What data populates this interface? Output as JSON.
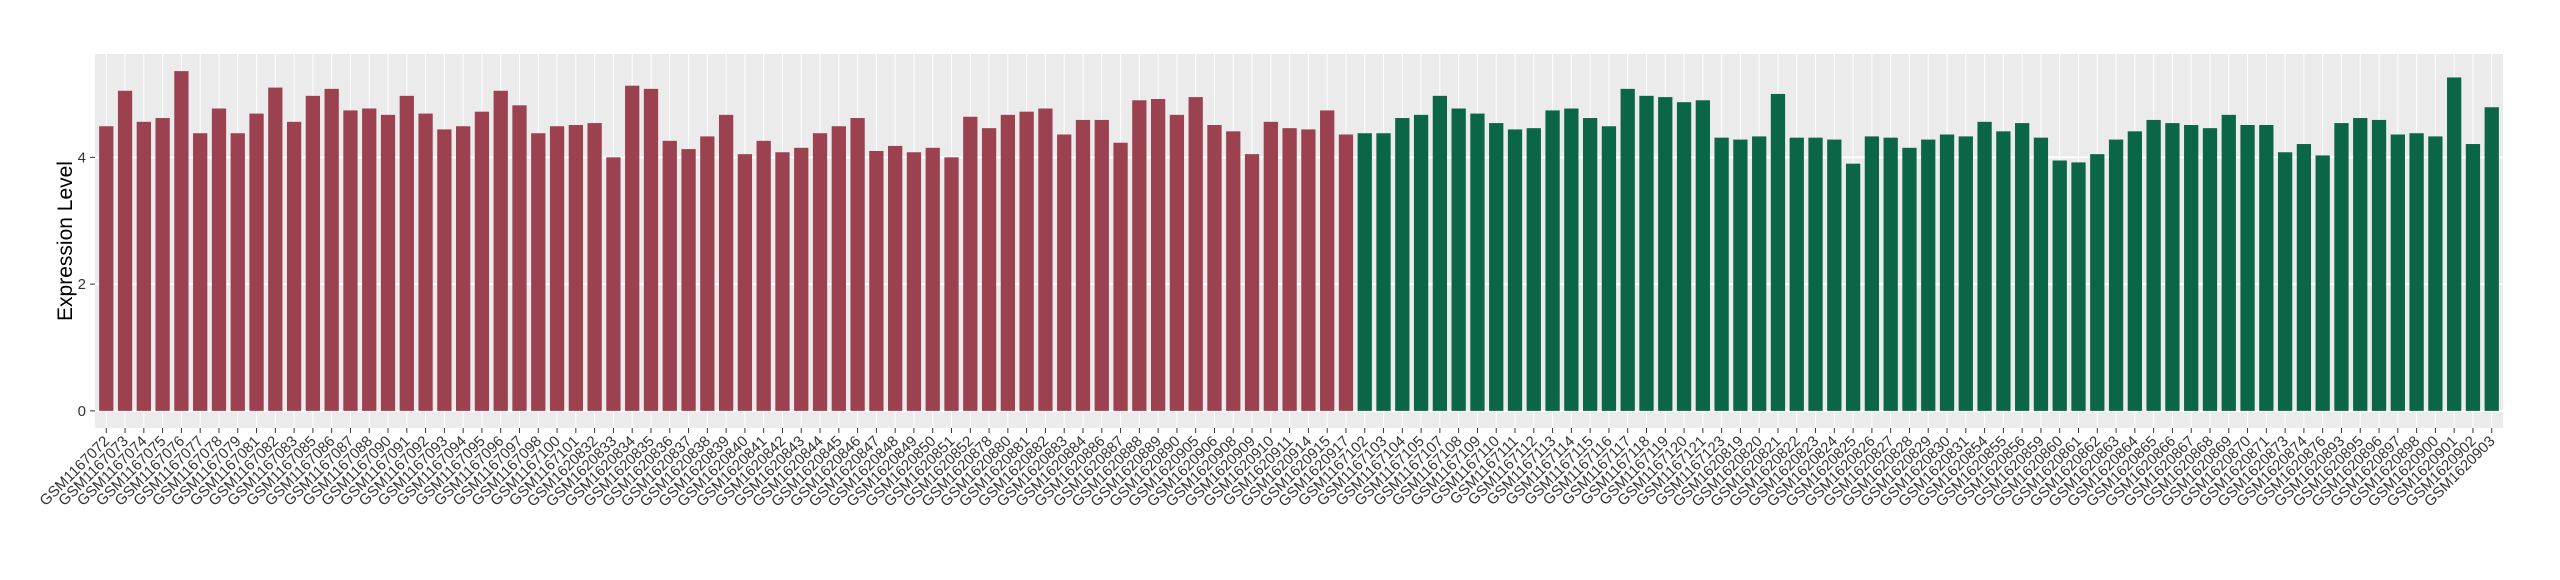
{
  "chart_data": {
    "type": "bar",
    "ylabel": "Expression Level",
    "ylim": [
      -0.27,
      5.63
    ],
    "yticks": [
      0,
      2,
      4
    ],
    "grid": true,
    "series": [
      {
        "color": "#9b4150",
        "categories": [
          "GSM1167072",
          "GSM1167073",
          "GSM1167074",
          "GSM1167075",
          "GSM1167076",
          "GSM1167077",
          "GSM1167078",
          "GSM1167079",
          "GSM1167081",
          "GSM1167082",
          "GSM1167083",
          "GSM1167085",
          "GSM1167086",
          "GSM1167087",
          "GSM1167088",
          "GSM1167090",
          "GSM1167091",
          "GSM1167092",
          "GSM1167093",
          "GSM1167094",
          "GSM1167095",
          "GSM1167096",
          "GSM1167097",
          "GSM1167098",
          "GSM1167100",
          "GSM1167101",
          "GSM1620832",
          "GSM1620833",
          "GSM1620834",
          "GSM1620835",
          "GSM1620836",
          "GSM1620837",
          "GSM1620838",
          "GSM1620839",
          "GSM1620840",
          "GSM1620841",
          "GSM1620842",
          "GSM1620843",
          "GSM1620844",
          "GSM1620845",
          "GSM1620846",
          "GSM1620847",
          "GSM1620848",
          "GSM1620849",
          "GSM1620850",
          "GSM1620851",
          "GSM1620852",
          "GSM1620878",
          "GSM1620880",
          "GSM1620881",
          "GSM1620882",
          "GSM1620883",
          "GSM1620884",
          "GSM1620886",
          "GSM1620887",
          "GSM1620888",
          "GSM1620889",
          "GSM1620890",
          "GSM1620905",
          "GSM1620906",
          "GSM1620908",
          "GSM1620909",
          "GSM1620910",
          "GSM1620911",
          "GSM1620914",
          "GSM1620915",
          "GSM1620917"
        ],
        "values": [
          4.49,
          5.05,
          4.56,
          4.62,
          5.36,
          4.38,
          4.77,
          4.38,
          4.69,
          5.1,
          4.56,
          4.97,
          5.08,
          4.74,
          4.77,
          4.67,
          4.97,
          4.69,
          4.44,
          4.49,
          4.72,
          5.05,
          4.82,
          4.38,
          4.49,
          4.51,
          4.54,
          4.0,
          5.13,
          5.08,
          4.26,
          4.13,
          4.33,
          4.67,
          4.05,
          4.26,
          4.08,
          4.15,
          4.38,
          4.49,
          4.62,
          4.1,
          4.18,
          4.08,
          4.15,
          4.0,
          4.64,
          4.46,
          4.67,
          4.72,
          4.77,
          4.36,
          4.59,
          4.59,
          4.23,
          4.9,
          4.92,
          4.67,
          4.95,
          4.51,
          4.41,
          4.05,
          4.56,
          4.46,
          4.44,
          4.74,
          4.36
        ]
      },
      {
        "color": "#0b6647",
        "categories": [
          "GSM1167102",
          "GSM1167103",
          "GSM1167104",
          "GSM1167105",
          "GSM1167107",
          "GSM1167108",
          "GSM1167109",
          "GSM1167110",
          "GSM1167111",
          "GSM1167112",
          "GSM1167113",
          "GSM1167114",
          "GSM1167115",
          "GSM1167116",
          "GSM1167117",
          "GSM1167118",
          "GSM1167119",
          "GSM1167120",
          "GSM1167121",
          "GSM1167123",
          "GSM1620819",
          "GSM1620820",
          "GSM1620821",
          "GSM1620822",
          "GSM1620823",
          "GSM1620824",
          "GSM1620825",
          "GSM1620826",
          "GSM1620827",
          "GSM1620828",
          "GSM1620829",
          "GSM1620830",
          "GSM1620831",
          "GSM1620854",
          "GSM1620855",
          "GSM1620856",
          "GSM1620859",
          "GSM1620860",
          "GSM1620861",
          "GSM1620862",
          "GSM1620863",
          "GSM1620864",
          "GSM1620865",
          "GSM1620866",
          "GSM1620867",
          "GSM1620868",
          "GSM1620869",
          "GSM1620870",
          "GSM1620871",
          "GSM1620873",
          "GSM1620874",
          "GSM1620876",
          "GSM1620893",
          "GSM1620895",
          "GSM1620896",
          "GSM1620897",
          "GSM1620898",
          "GSM1620900",
          "GSM1620901",
          "GSM1620902",
          "GSM1620903"
        ],
        "values": [
          4.38,
          4.38,
          4.62,
          4.67,
          4.97,
          4.77,
          4.69,
          4.54,
          4.44,
          4.46,
          4.74,
          4.77,
          4.62,
          4.49,
          5.08,
          4.97,
          4.95,
          4.87,
          4.9,
          4.31,
          4.28,
          4.33,
          5.0,
          4.31,
          4.31,
          4.28,
          3.9,
          4.33,
          4.31,
          4.15,
          4.28,
          4.36,
          4.33,
          4.56,
          4.41,
          4.54,
          4.31,
          3.95,
          3.92,
          4.05,
          4.28,
          4.41,
          4.59,
          4.54,
          4.51,
          4.46,
          4.67,
          4.51,
          4.51,
          4.08,
          4.21,
          4.03,
          4.54,
          4.62,
          4.59,
          4.36,
          4.38,
          4.33,
          5.26,
          4.21,
          4.79
        ]
      }
    ]
  }
}
